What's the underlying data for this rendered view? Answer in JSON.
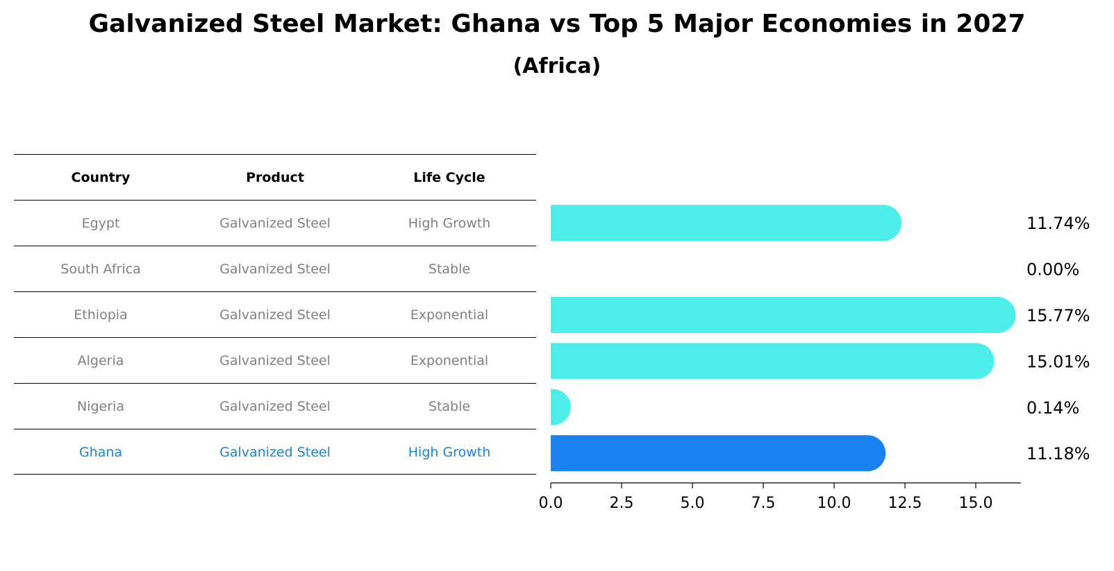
{
  "title": "Galvanized Steel Market: Ghana vs Top 5 Major Economies in 2027",
  "subtitle": "(Africa)",
  "table": {
    "headers": [
      "Country",
      "Product",
      "Life Cycle"
    ],
    "rows": [
      [
        "Egypt",
        "Galvanized Steel",
        "High Growth"
      ],
      [
        "South Africa",
        "Galvanized Steel",
        "Stable"
      ],
      [
        "Ethiopia",
        "Galvanized Steel",
        "Exponential"
      ],
      [
        "Algeria",
        "Galvanized Steel",
        "Exponential"
      ],
      [
        "Nigeria",
        "Galvanized Steel",
        "Stable"
      ],
      [
        "Ghana",
        "Galvanized Steel",
        "High Growth"
      ]
    ]
  },
  "chart_data": {
    "type": "bar",
    "orientation": "horizontal",
    "title": "Galvanized Steel Market: Ghana vs Top 5 Major Economies in 2027",
    "subtitle": "(Africa)",
    "categories": [
      "Egypt",
      "South Africa",
      "Ethiopia",
      "Algeria",
      "Nigeria",
      "Ghana"
    ],
    "values": [
      11.74,
      0.0,
      15.77,
      15.01,
      0.14,
      11.18
    ],
    "value_labels": [
      "11.74%",
      "0.00%",
      "15.77%",
      "15.01%",
      "0.14%",
      "11.18%"
    ],
    "highlight": "Ghana",
    "xlim": [
      0,
      16.5
    ],
    "xticks": [
      0.0,
      2.5,
      5.0,
      7.5,
      10.0,
      12.5,
      15.0
    ],
    "xtick_labels": [
      "0.0",
      "2.5",
      "5.0",
      "7.5",
      "10.0",
      "12.5",
      "15.0"
    ],
    "xlabel": "",
    "ylabel": "",
    "colors": {
      "default": "#4deeea",
      "highlight": "#1a82f0"
    }
  }
}
